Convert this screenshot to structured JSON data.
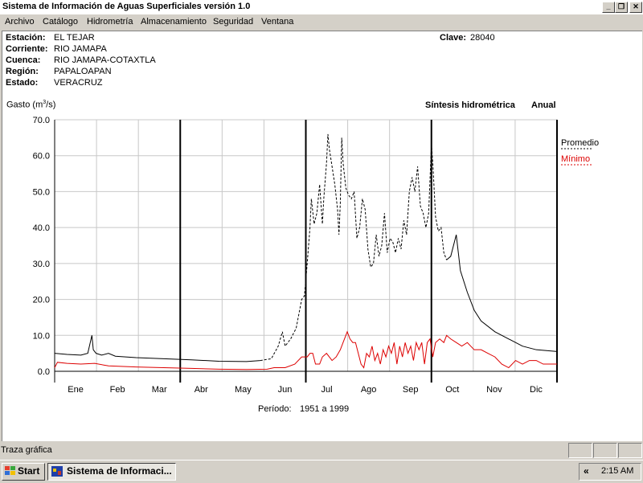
{
  "window": {
    "title": "Sistema de Información de Aguas Superficiales  versión 1.0",
    "minimize_glyph": "_",
    "restore_glyph": "❐",
    "close_glyph": "✕"
  },
  "menu": [
    "Archivo",
    "Catálogo",
    "Hidrometría",
    "Almacenamiento",
    "Seguridad",
    "Ventana"
  ],
  "station": {
    "labels": [
      "Estación:",
      "Corriente:",
      "Cuenca:",
      "Región:",
      "Estado:"
    ],
    "values": [
      "EL TEJAR",
      "RIO JAMAPA",
      "RIO JAMAPA-COTAXTLA",
      "PAPALOAPAN",
      "VERACRUZ"
    ],
    "clave_label": "Clave:",
    "clave_value": "28040"
  },
  "chart_header": {
    "ylabel": "Gasto (m",
    "ylabel_sup": "3",
    "ylabel_end": "/s)",
    "synthesis": "Síntesis hidrométrica",
    "period_type": "Anual",
    "period_label": "Período:",
    "period_value": "1951 a 1999"
  },
  "chart_data": {
    "type": "line",
    "ylabel": "Gasto (m3/s)",
    "ylim": [
      0,
      70
    ],
    "yticks": [
      "0.0",
      "10.0",
      "20.0",
      "30.0",
      "40.0",
      "50.0",
      "60.0",
      "70.0"
    ],
    "categories": [
      "Ene",
      "Feb",
      "Mar",
      "Abr",
      "May",
      "Jun",
      "Jul",
      "Ago",
      "Sep",
      "Oct",
      "Nov",
      "Dic"
    ],
    "grid": true,
    "legend": "top-right",
    "x_unit": "day of year",
    "series": [
      {
        "name": "Promedio",
        "color": "#000000",
        "dash_from_day": 150,
        "dash_to_day": 285,
        "points": [
          [
            1,
            5
          ],
          [
            10,
            4.7
          ],
          [
            20,
            4.5
          ],
          [
            25,
            5
          ],
          [
            28,
            10
          ],
          [
            29,
            6
          ],
          [
            31,
            5
          ],
          [
            35,
            4.5
          ],
          [
            40,
            5
          ],
          [
            45,
            4.2
          ],
          [
            60,
            3.8
          ],
          [
            80,
            3.5
          ],
          [
            100,
            3.2
          ],
          [
            120,
            2.8
          ],
          [
            140,
            2.7
          ],
          [
            150,
            3
          ],
          [
            158,
            3.5
          ],
          [
            163,
            7
          ],
          [
            166,
            11
          ],
          [
            168,
            7
          ],
          [
            172,
            9
          ],
          [
            176,
            12
          ],
          [
            178,
            16
          ],
          [
            180,
            20
          ],
          [
            182,
            21
          ],
          [
            184,
            30
          ],
          [
            186,
            40
          ],
          [
            187,
            48
          ],
          [
            189,
            41
          ],
          [
            191,
            44
          ],
          [
            193,
            52
          ],
          [
            195,
            41
          ],
          [
            196,
            48
          ],
          [
            198,
            58
          ],
          [
            199,
            66
          ],
          [
            200,
            62
          ],
          [
            202,
            57
          ],
          [
            204,
            52
          ],
          [
            206,
            45
          ],
          [
            207,
            38
          ],
          [
            208,
            47
          ],
          [
            209,
            65
          ],
          [
            210,
            58
          ],
          [
            212,
            51
          ],
          [
            214,
            49
          ],
          [
            216,
            48
          ],
          [
            218,
            50
          ],
          [
            220,
            37
          ],
          [
            222,
            40
          ],
          [
            224,
            48
          ],
          [
            226,
            45
          ],
          [
            228,
            34
          ],
          [
            230,
            29
          ],
          [
            232,
            30
          ],
          [
            234,
            38
          ],
          [
            236,
            32
          ],
          [
            238,
            35
          ],
          [
            240,
            44
          ],
          [
            242,
            33
          ],
          [
            244,
            37
          ],
          [
            246,
            36
          ],
          [
            248,
            33
          ],
          [
            250,
            37
          ],
          [
            252,
            34
          ],
          [
            254,
            42
          ],
          [
            256,
            38
          ],
          [
            258,
            50
          ],
          [
            260,
            54
          ],
          [
            262,
            50
          ],
          [
            264,
            57
          ],
          [
            266,
            46
          ],
          [
            268,
            44
          ],
          [
            270,
            40
          ],
          [
            272,
            44
          ],
          [
            274,
            63
          ],
          [
            275,
            58
          ],
          [
            277,
            43
          ],
          [
            279,
            39
          ],
          [
            281,
            40
          ],
          [
            283,
            33
          ],
          [
            285,
            31
          ],
          [
            288,
            32
          ],
          [
            292,
            38
          ],
          [
            295,
            28
          ],
          [
            300,
            22
          ],
          [
            305,
            17
          ],
          [
            310,
            14
          ],
          [
            320,
            11
          ],
          [
            330,
            9
          ],
          [
            340,
            7
          ],
          [
            350,
            6
          ],
          [
            365,
            5.5
          ]
        ]
      },
      {
        "name": "Mínimo",
        "color": "#dd0000",
        "points": [
          [
            1,
            1
          ],
          [
            3,
            2.5
          ],
          [
            10,
            2.2
          ],
          [
            20,
            2
          ],
          [
            30,
            2.2
          ],
          [
            40,
            1.5
          ],
          [
            60,
            1.2
          ],
          [
            80,
            1
          ],
          [
            100,
            0.8
          ],
          [
            120,
            0.6
          ],
          [
            140,
            0.5
          ],
          [
            155,
            0.6
          ],
          [
            160,
            1
          ],
          [
            168,
            1
          ],
          [
            175,
            2
          ],
          [
            180,
            4
          ],
          [
            184,
            4
          ],
          [
            186,
            5
          ],
          [
            188,
            5
          ],
          [
            190,
            2
          ],
          [
            193,
            2
          ],
          [
            195,
            4
          ],
          [
            198,
            5
          ],
          [
            202,
            3
          ],
          [
            205,
            4
          ],
          [
            208,
            6
          ],
          [
            210,
            8
          ],
          [
            212,
            10
          ],
          [
            213,
            11
          ],
          [
            215,
            9
          ],
          [
            217,
            8
          ],
          [
            219,
            8
          ],
          [
            221,
            5
          ],
          [
            223,
            2
          ],
          [
            225,
            1
          ],
          [
            227,
            5
          ],
          [
            229,
            4
          ],
          [
            231,
            7
          ],
          [
            233,
            3
          ],
          [
            235,
            5
          ],
          [
            237,
            2
          ],
          [
            239,
            6
          ],
          [
            241,
            4
          ],
          [
            243,
            7
          ],
          [
            245,
            5
          ],
          [
            247,
            8
          ],
          [
            249,
            2
          ],
          [
            251,
            7
          ],
          [
            253,
            4
          ],
          [
            255,
            8
          ],
          [
            257,
            5
          ],
          [
            259,
            7
          ],
          [
            261,
            3
          ],
          [
            263,
            8
          ],
          [
            265,
            6
          ],
          [
            267,
            8
          ],
          [
            269,
            2
          ],
          [
            271,
            8
          ],
          [
            273,
            9
          ],
          [
            275,
            4
          ],
          [
            277,
            8
          ],
          [
            280,
            9
          ],
          [
            283,
            8
          ],
          [
            285,
            10
          ],
          [
            288,
            9
          ],
          [
            292,
            8
          ],
          [
            296,
            7
          ],
          [
            300,
            8
          ],
          [
            305,
            6
          ],
          [
            310,
            6
          ],
          [
            315,
            5
          ],
          [
            320,
            4
          ],
          [
            325,
            2
          ],
          [
            330,
            1
          ],
          [
            335,
            3
          ],
          [
            340,
            2
          ],
          [
            345,
            3
          ],
          [
            350,
            3
          ],
          [
            355,
            2
          ],
          [
            360,
            2
          ],
          [
            365,
            2
          ]
        ]
      }
    ]
  },
  "status": {
    "text": "Traza gráfica"
  },
  "taskbar": {
    "start_label": "Start",
    "task_label": "Sistema de Informaci...",
    "tray_chevron": "«",
    "clock": "2:15 AM"
  }
}
